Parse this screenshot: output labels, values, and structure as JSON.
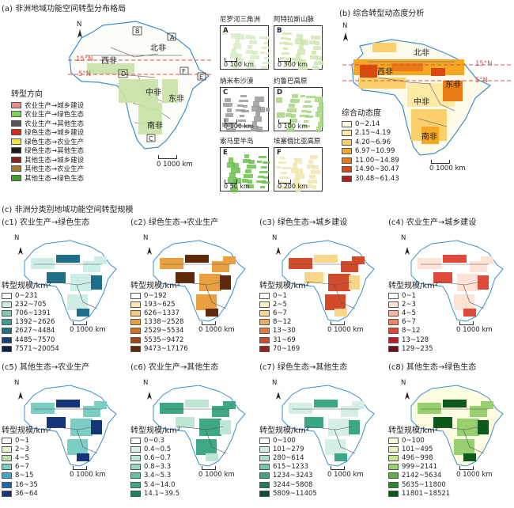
{
  "panel_a": {
    "title": "(a) 非洲地域功能空间转型分布格局",
    "lat_15": "15°N",
    "lat_5": "5°N",
    "north": "N",
    "scale": "0  1000 km",
    "regions": {
      "north": "北非",
      "west": "西非",
      "central": "中非",
      "east": "东非",
      "south": "南非"
    },
    "inset_letters": {
      "b": "B",
      "a": "A",
      "d": "D",
      "f": "F",
      "e": "E",
      "c": "C"
    },
    "legend_title": "转型方向",
    "legend": [
      {
        "label": "农业生产→城乡建设",
        "color": "#f08a8a"
      },
      {
        "label": "农业生产→绿色生态",
        "color": "#7fd35a"
      },
      {
        "label": "农业生产→其他生态",
        "color": "#555555"
      },
      {
        "label": "绿色生态→城乡建设",
        "color": "#e3261f"
      },
      {
        "label": "绿色生态→农业生产",
        "color": "#f2e63a"
      },
      {
        "label": "绿色生态→其他生态",
        "color": "#1a1a1a"
      },
      {
        "label": "其他生态→城乡建设",
        "color": "#8c1f1f"
      },
      {
        "label": "其他生态→农业生产",
        "color": "#a8782a"
      },
      {
        "label": "其他生态→绿色生态",
        "color": "#3e9e2e"
      }
    ],
    "insets": [
      {
        "title": "尼罗河三角洲",
        "letter": "A",
        "scale": "0  100 km"
      },
      {
        "title": "阿特拉斯山脉",
        "letter": "B",
        "scale": "0  300 km"
      },
      {
        "title": "纳米布沙漠",
        "letter": "C",
        "scale": "0  100 km"
      },
      {
        "title": "约鲁巴高原",
        "letter": "D",
        "scale": "0  100 km"
      },
      {
        "title": "索马里半岛",
        "letter": "E",
        "scale": "0  50 km"
      },
      {
        "title": "埃塞俄比亚高原",
        "letter": "F",
        "scale": "0  200 km"
      }
    ]
  },
  "panel_b": {
    "title": "(b) 综合转型动态度分析",
    "lat_15": "15°N",
    "lat_5": "5°N",
    "north": "N",
    "scale": "0  1000 km",
    "regions": {
      "north": "北非",
      "west": "西非",
      "central": "中非",
      "east": "东非",
      "south": "南非"
    },
    "legend_title": "综合动态度",
    "legend": [
      {
        "label": "0~2.14",
        "color": "#fffbea"
      },
      {
        "label": "2.15~4.19",
        "color": "#fde9a6"
      },
      {
        "label": "4.20~6.96",
        "color": "#fbd06a"
      },
      {
        "label": "6.97~10.99",
        "color": "#f5a623"
      },
      {
        "label": "11.00~14.89",
        "color": "#ea7a16"
      },
      {
        "label": "14.90~30.47",
        "color": "#d9480f"
      },
      {
        "label": "30.48~61.43",
        "color": "#b71c1c"
      }
    ]
  },
  "panel_c": {
    "title": "(c) 非洲分类别地域功能空间转型规模",
    "legend_title": "转型规模/km²",
    "north": "N",
    "scale": "0  1000 km",
    "maps": [
      {
        "title": "(c1) 农业生产→绿色生态",
        "legend": [
          {
            "label": "0~231",
            "color": "#ffffff"
          },
          {
            "label": "232~705",
            "color": "#cdeee6"
          },
          {
            "label": "706~1391",
            "color": "#7ccdb6"
          },
          {
            "label": "1392~2626",
            "color": "#3aa08f"
          },
          {
            "label": "2627~4484",
            "color": "#1f6f8b"
          },
          {
            "label": "4485~7570",
            "color": "#17407a"
          },
          {
            "label": "7571~20054",
            "color": "#0b1f52"
          }
        ]
      },
      {
        "title": "(c2) 绿色生态→农业生产",
        "legend": [
          {
            "label": "0~192",
            "color": "#ffffff"
          },
          {
            "label": "193~625",
            "color": "#fbe6b8"
          },
          {
            "label": "626~1337",
            "color": "#f6c97c"
          },
          {
            "label": "1338~2528",
            "color": "#e9a040"
          },
          {
            "label": "2529~5534",
            "color": "#cf7420"
          },
          {
            "label": "5535~9472",
            "color": "#9c4a12"
          },
          {
            "label": "9473~17176",
            "color": "#5e2a0a"
          }
        ]
      },
      {
        "title": "(c3) 绿色生态→城乡建设",
        "legend": [
          {
            "label": "0~1",
            "color": "#ffffff"
          },
          {
            "label": "2~5",
            "color": "#fdf0c4"
          },
          {
            "label": "6~7",
            "color": "#f9d68a"
          },
          {
            "label": "8~12",
            "color": "#f2a957"
          },
          {
            "label": "13~30",
            "color": "#e77a3a"
          },
          {
            "label": "31~69",
            "color": "#d24a2a"
          },
          {
            "label": "70~169",
            "color": "#a11d1d"
          }
        ]
      },
      {
        "title": "(c4) 农业生产→城乡建设",
        "legend": [
          {
            "label": "0~1",
            "color": "#ffffff"
          },
          {
            "label": "2~3",
            "color": "#fde2d6"
          },
          {
            "label": "4~5",
            "color": "#f7b8a0"
          },
          {
            "label": "6~7",
            "color": "#ef8566"
          },
          {
            "label": "8~12",
            "color": "#dd4a3a"
          },
          {
            "label": "13~128",
            "color": "#b71c2a"
          },
          {
            "label": "129~235",
            "color": "#6d0f1f"
          }
        ]
      },
      {
        "title": "(c5) 其他生态→农业生产",
        "legend": [
          {
            "label": "0~1",
            "color": "#ffffff"
          },
          {
            "label": "2~3",
            "color": "#e2f3c9"
          },
          {
            "label": "4~5",
            "color": "#b8e3b0"
          },
          {
            "label": "6~7",
            "color": "#7ccdc4"
          },
          {
            "label": "8~15",
            "color": "#41a6cf"
          },
          {
            "label": "16~35",
            "color": "#2369b0"
          },
          {
            "label": "36~64",
            "color": "#15357a"
          }
        ]
      },
      {
        "title": "(c6) 农业生产→其他生态",
        "legend": [
          {
            "label": "0~0.3",
            "color": "#ffffff"
          },
          {
            "label": "0.4~0.5",
            "color": "#def3e8"
          },
          {
            "label": "0.6~0.7",
            "color": "#bfe6d4"
          },
          {
            "label": "0.8~3.3",
            "color": "#95d6bd"
          },
          {
            "label": "3.4~5.3",
            "color": "#68c2a2"
          },
          {
            "label": "5.4~14.0",
            "color": "#3ea785"
          },
          {
            "label": "14.1~39.5",
            "color": "#1d7f62"
          }
        ]
      },
      {
        "title": "(c7) 绿色生态→其他生态",
        "legend": [
          {
            "label": "0~100",
            "color": "#ffffff"
          },
          {
            "label": "101~279",
            "color": "#d6efe6"
          },
          {
            "label": "280~614",
            "color": "#a9dfcc"
          },
          {
            "label": "615~1233",
            "color": "#72c7aa"
          },
          {
            "label": "1234~3243",
            "color": "#3ca784"
          },
          {
            "label": "3244~5808",
            "color": "#1b7e5d"
          },
          {
            "label": "5809~11405",
            "color": "#0b4d35"
          }
        ]
      },
      {
        "title": "(c8) 其他生态→绿色生态",
        "legend": [
          {
            "label": "0~100",
            "color": "#fdfbe0"
          },
          {
            "label": "101~495",
            "color": "#eaf3b6"
          },
          {
            "label": "496~998",
            "color": "#c9e690"
          },
          {
            "label": "999~2141",
            "color": "#98d070"
          },
          {
            "label": "2142~5634",
            "color": "#5fae4a"
          },
          {
            "label": "5635~11800",
            "color": "#2e8430"
          },
          {
            "label": "11801~18521",
            "color": "#0b5a1c"
          }
        ]
      }
    ]
  }
}
